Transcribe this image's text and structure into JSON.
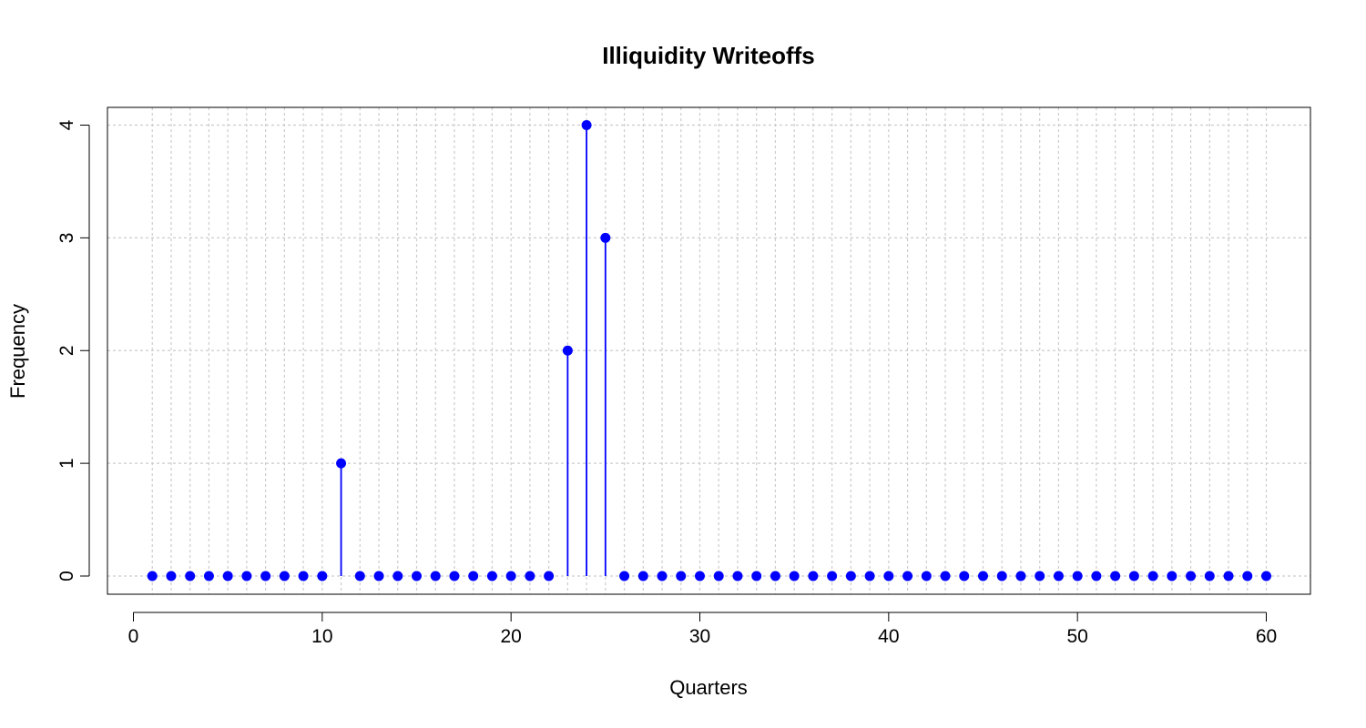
{
  "chart_data": {
    "type": "scatter",
    "style": "lollipop",
    "title": "Illiquidity Writeoffs",
    "xlabel": "Quarters",
    "ylabel": "Frequency",
    "xlim": [
      0,
      60
    ],
    "ylim": [
      0,
      4
    ],
    "x_ticks": [
      "0",
      "10",
      "20",
      "30",
      "40",
      "50",
      "60"
    ],
    "y_ticks": [
      "0",
      "1",
      "2",
      "3",
      "4"
    ],
    "grid": true,
    "color": "#0000ff",
    "x": [
      1,
      2,
      3,
      4,
      5,
      6,
      7,
      8,
      9,
      10,
      11,
      12,
      13,
      14,
      15,
      16,
      17,
      18,
      19,
      20,
      21,
      22,
      23,
      24,
      25,
      26,
      27,
      28,
      29,
      30,
      31,
      32,
      33,
      34,
      35,
      36,
      37,
      38,
      39,
      40,
      41,
      42,
      43,
      44,
      45,
      46,
      47,
      48,
      49,
      50,
      51,
      52,
      53,
      54,
      55,
      56,
      57,
      58,
      59,
      60
    ],
    "values": [
      0,
      0,
      0,
      0,
      0,
      0,
      0,
      0,
      0,
      0,
      1,
      0,
      0,
      0,
      0,
      0,
      0,
      0,
      0,
      0,
      0,
      0,
      2,
      4,
      3,
      0,
      0,
      0,
      0,
      0,
      0,
      0,
      0,
      0,
      0,
      0,
      0,
      0,
      0,
      0,
      0,
      0,
      0,
      0,
      0,
      0,
      0,
      0,
      0,
      0,
      0,
      0,
      0,
      0,
      0,
      0,
      0,
      0,
      0,
      0
    ]
  }
}
